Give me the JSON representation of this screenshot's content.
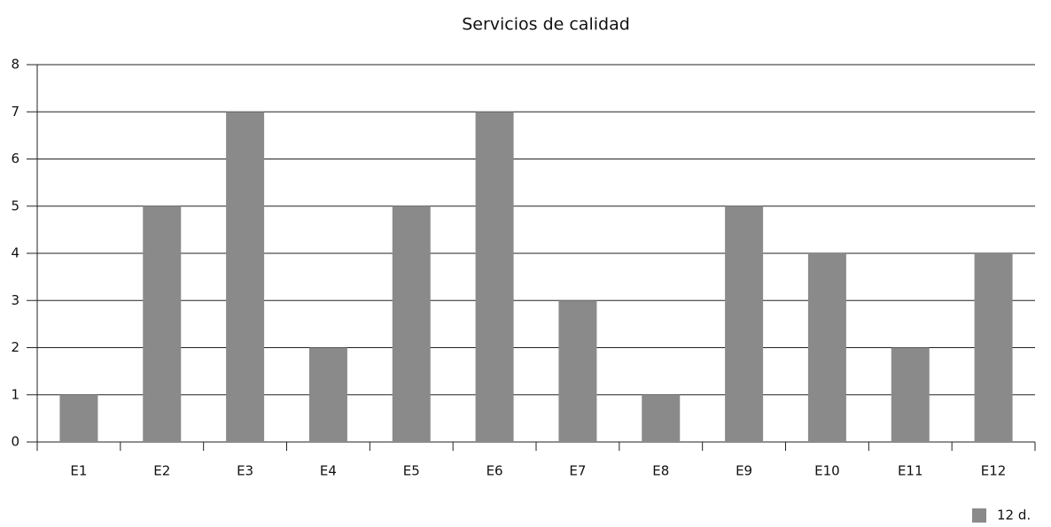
{
  "chart_data": {
    "type": "bar",
    "title": "Servicios de calidad",
    "categories": [
      "E1",
      "E2",
      "E3",
      "E4",
      "E5",
      "E6",
      "E7",
      "E8",
      "E9",
      "E10",
      "E11",
      "E12"
    ],
    "series": [
      {
        "name": "12 d.",
        "color": "#8a8a8b",
        "values": [
          1,
          5,
          7,
          2,
          5,
          7,
          3,
          1,
          5,
          4,
          2,
          4
        ]
      }
    ],
    "ylim": [
      0,
      8
    ],
    "yticks": [
      0,
      1,
      2,
      3,
      4,
      5,
      6,
      7,
      8
    ],
    "grid": true,
    "legend": "bottom-right"
  }
}
